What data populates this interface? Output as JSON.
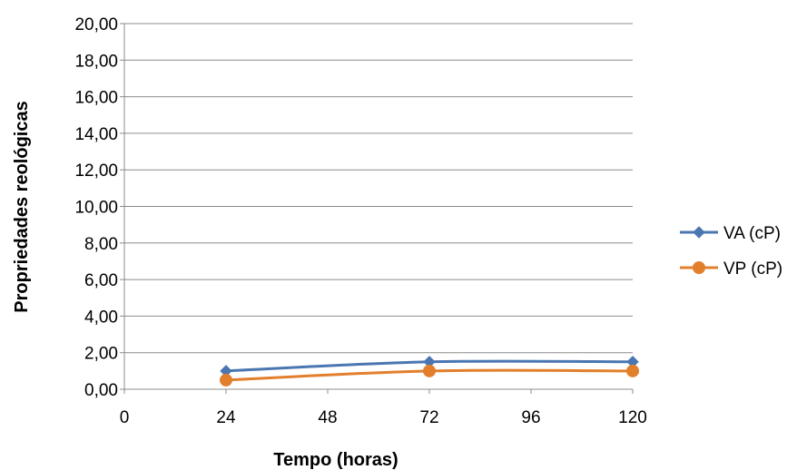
{
  "chart_data": {
    "type": "line",
    "title": "",
    "xlabel": "Tempo (horas)",
    "ylabel": "Propriedades reológicas",
    "xlim": [
      0,
      120
    ],
    "ylim": [
      0,
      20
    ],
    "x_ticks": [
      "0",
      "24",
      "48",
      "72",
      "96",
      "120"
    ],
    "x_tick_values": [
      0,
      24,
      48,
      72,
      96,
      120
    ],
    "y_ticks": [
      "0,00",
      "2,00",
      "4,00",
      "6,00",
      "8,00",
      "10,00",
      "12,00",
      "14,00",
      "16,00",
      "18,00",
      "20,00"
    ],
    "y_tick_values": [
      0,
      2,
      4,
      6,
      8,
      10,
      12,
      14,
      16,
      18,
      20
    ],
    "grid": {
      "horizontal": true,
      "vertical": false
    },
    "legend_position": "right",
    "series": [
      {
        "name": "VA (cP)",
        "color": "#4a76b1",
        "marker": "diamond",
        "x": [
          24,
          72,
          120
        ],
        "y": [
          1.0,
          1.5,
          1.5
        ]
      },
      {
        "name": "VP (cP)",
        "color": "#e27f2c",
        "marker": "circle",
        "x": [
          24,
          72,
          120
        ],
        "y": [
          0.5,
          1.0,
          1.0
        ]
      }
    ]
  }
}
